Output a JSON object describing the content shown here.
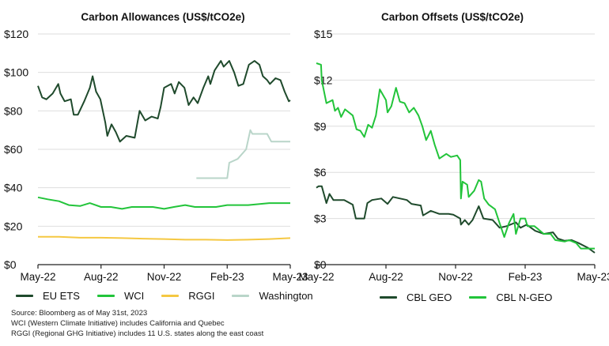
{
  "chart_data": [
    {
      "type": "line",
      "title": "Carbon Allowances (US$/tCO2e)",
      "xlabel": "",
      "ylabel": "",
      "x_ticks": [
        "May-22",
        "Aug-22",
        "Nov-22",
        "Feb-23",
        "May-23"
      ],
      "y_ticks": [
        "$0",
        "$20",
        "$40",
        "$60",
        "$80",
        "$100",
        "$120"
      ],
      "ylim": [
        0,
        120
      ],
      "xlim": [
        "2022-05-01",
        "2023-05-01"
      ],
      "grid": "horizontal",
      "legend": "bottom",
      "series": [
        {
          "name": "EU ETS",
          "color": "#1f4a2c",
          "points": [
            [
              "2022-05-01",
              93
            ],
            [
              "2022-05-07",
              87
            ],
            [
              "2022-05-13",
              86
            ],
            [
              "2022-05-22",
              89
            ],
            [
              "2022-05-30",
              94
            ],
            [
              "2022-06-03",
              89
            ],
            [
              "2022-06-09",
              85
            ],
            [
              "2022-06-18",
              86
            ],
            [
              "2022-06-22",
              78
            ],
            [
              "2022-06-28",
              78
            ],
            [
              "2022-07-07",
              85
            ],
            [
              "2022-07-15",
              92
            ],
            [
              "2022-07-19",
              98
            ],
            [
              "2022-07-24",
              90
            ],
            [
              "2022-07-30",
              86
            ],
            [
              "2022-08-07",
              74
            ],
            [
              "2022-08-10",
              67
            ],
            [
              "2022-08-16",
              73
            ],
            [
              "2022-08-22",
              69
            ],
            [
              "2022-08-28",
              64
            ],
            [
              "2022-09-07",
              67
            ],
            [
              "2022-09-19",
              66
            ],
            [
              "2022-09-26",
              80
            ],
            [
              "2022-10-04",
              75
            ],
            [
              "2022-10-13",
              77
            ],
            [
              "2022-10-22",
              76
            ],
            [
              "2022-10-26",
              82
            ],
            [
              "2022-11-01",
              92
            ],
            [
              "2022-11-11",
              94
            ],
            [
              "2022-11-16",
              89
            ],
            [
              "2022-11-22",
              95
            ],
            [
              "2022-11-30",
              92
            ],
            [
              "2022-12-06",
              83
            ],
            [
              "2022-12-13",
              87
            ],
            [
              "2022-12-19",
              84
            ],
            [
              "2022-12-27",
              92
            ],
            [
              "2023-01-04",
              98
            ],
            [
              "2023-01-07",
              94
            ],
            [
              "2023-01-13",
              101
            ],
            [
              "2023-01-22",
              106
            ],
            [
              "2023-01-26",
              103
            ],
            [
              "2023-02-04",
              106
            ],
            [
              "2023-02-11",
              100
            ],
            [
              "2023-02-17",
              93
            ],
            [
              "2023-02-24",
              94
            ],
            [
              "2023-03-02",
              104
            ],
            [
              "2023-03-10",
              106
            ],
            [
              "2023-03-17",
              104
            ],
            [
              "2023-03-22",
              98
            ],
            [
              "2023-03-28",
              96
            ],
            [
              "2023-04-02",
              94
            ],
            [
              "2023-04-10",
              97
            ],
            [
              "2023-04-17",
              96
            ],
            [
              "2023-04-23",
              90
            ],
            [
              "2023-04-29",
              85
            ],
            [
              "2023-05-01",
              85.5
            ]
          ]
        },
        {
          "name": "WCI",
          "color": "#22c43a",
          "points": [
            [
              "2022-05-01",
              35
            ],
            [
              "2022-05-15",
              34
            ],
            [
              "2022-06-01",
              33
            ],
            [
              "2022-06-15",
              31
            ],
            [
              "2022-07-01",
              30.5
            ],
            [
              "2022-07-15",
              32
            ],
            [
              "2022-08-01",
              30
            ],
            [
              "2022-08-15",
              30
            ],
            [
              "2022-09-01",
              29
            ],
            [
              "2022-09-15",
              30
            ],
            [
              "2022-10-01",
              30
            ],
            [
              "2022-10-15",
              30
            ],
            [
              "2022-11-01",
              29
            ],
            [
              "2022-11-15",
              30
            ],
            [
              "2022-12-01",
              31
            ],
            [
              "2022-12-15",
              30
            ],
            [
              "2023-01-01",
              30
            ],
            [
              "2023-01-15",
              30
            ],
            [
              "2023-02-01",
              31
            ],
            [
              "2023-03-01",
              31
            ],
            [
              "2023-04-01",
              32
            ],
            [
              "2023-04-15",
              32
            ],
            [
              "2023-05-01",
              32
            ]
          ]
        },
        {
          "name": "RGGI",
          "color": "#f5c842",
          "points": [
            [
              "2022-05-01",
              14.5
            ],
            [
              "2022-06-01",
              14.5
            ],
            [
              "2022-07-01",
              14
            ],
            [
              "2022-08-01",
              14
            ],
            [
              "2022-09-01",
              13.8
            ],
            [
              "2022-10-01",
              13.5
            ],
            [
              "2022-11-01",
              13.3
            ],
            [
              "2022-12-01",
              13
            ],
            [
              "2023-01-01",
              13
            ],
            [
              "2023-02-01",
              12.8
            ],
            [
              "2023-03-01",
              13
            ],
            [
              "2023-04-01",
              13.3
            ],
            [
              "2023-05-01",
              13.8
            ]
          ]
        },
        {
          "name": "Washington",
          "color": "#b9d5c9",
          "points": [
            [
              "2022-12-17",
              45
            ],
            [
              "2023-02-01",
              45
            ],
            [
              "2023-02-04",
              53
            ],
            [
              "2023-02-16",
              55
            ],
            [
              "2023-02-28",
              60
            ],
            [
              "2023-03-04",
              70
            ],
            [
              "2023-03-07",
              68
            ],
            [
              "2023-03-28",
              68
            ],
            [
              "2023-04-04",
              64
            ],
            [
              "2023-04-16",
              64
            ],
            [
              "2023-05-01",
              64
            ]
          ]
        }
      ]
    },
    {
      "type": "line",
      "title": "Carbon Offsets (US$/tCO2e)",
      "xlabel": "",
      "ylabel": "",
      "x_ticks": [
        "May-22",
        "Aug-22",
        "Nov-22",
        "Feb-23",
        "May-23"
      ],
      "y_ticks": [
        "$0",
        "$3",
        "$6",
        "$9",
        "$12",
        "$15"
      ],
      "ylim": [
        0,
        15
      ],
      "xlim": [
        "2022-05-01",
        "2023-05-01"
      ],
      "grid": "horizontal",
      "legend": "bottom",
      "series": [
        {
          "name": "CBL GEO",
          "color": "#1f4a2c",
          "points": [
            [
              "2022-05-01",
              5.0
            ],
            [
              "2022-05-04",
              5.1
            ],
            [
              "2022-05-08",
              5.1
            ],
            [
              "2022-05-14",
              4.0
            ],
            [
              "2022-05-18",
              4.6
            ],
            [
              "2022-05-23",
              4.2
            ],
            [
              "2022-06-07",
              4.2
            ],
            [
              "2022-06-18",
              3.9
            ],
            [
              "2022-06-22",
              3.0
            ],
            [
              "2022-07-03",
              3.0
            ],
            [
              "2022-07-07",
              4.0
            ],
            [
              "2022-07-13",
              4.2
            ],
            [
              "2022-07-25",
              4.3
            ],
            [
              "2022-08-03",
              3.95
            ],
            [
              "2022-08-10",
              4.4
            ],
            [
              "2022-08-28",
              4.2
            ],
            [
              "2022-09-04",
              3.95
            ],
            [
              "2022-09-16",
              3.85
            ],
            [
              "2022-09-19",
              3.2
            ],
            [
              "2022-09-29",
              3.5
            ],
            [
              "2022-10-10",
              3.3
            ],
            [
              "2022-10-22",
              3.3
            ],
            [
              "2022-10-28",
              3.25
            ],
            [
              "2022-11-07",
              3.0
            ],
            [
              "2022-11-08",
              2.6
            ],
            [
              "2022-11-13",
              2.9
            ],
            [
              "2022-11-18",
              2.6
            ],
            [
              "2022-11-23",
              2.9
            ],
            [
              "2022-12-01",
              3.8
            ],
            [
              "2022-12-07",
              3.0
            ],
            [
              "2022-12-19",
              2.9
            ],
            [
              "2022-12-28",
              2.4
            ],
            [
              "2023-01-07",
              2.5
            ],
            [
              "2023-01-19",
              2.75
            ],
            [
              "2023-01-25",
              2.4
            ],
            [
              "2023-02-03",
              2.6
            ],
            [
              "2023-02-14",
              2.2
            ],
            [
              "2023-02-25",
              2.0
            ],
            [
              "2023-03-07",
              2.1
            ],
            [
              "2023-03-13",
              1.7
            ],
            [
              "2023-03-22",
              1.55
            ],
            [
              "2023-04-01",
              1.6
            ],
            [
              "2023-04-10",
              1.4
            ],
            [
              "2023-04-22",
              1.1
            ],
            [
              "2023-05-01",
              0.77
            ]
          ]
        },
        {
          "name": "CBL N-GEO",
          "color": "#22c43a",
          "points": [
            [
              "2022-05-01",
              13.1
            ],
            [
              "2022-05-07",
              13.0
            ],
            [
              "2022-05-08",
              12.0
            ],
            [
              "2022-05-14",
              10.5
            ],
            [
              "2022-05-22",
              10.7
            ],
            [
              "2022-05-25",
              10.0
            ],
            [
              "2022-05-29",
              10.2
            ],
            [
              "2022-06-03",
              9.6
            ],
            [
              "2022-06-08",
              10.1
            ],
            [
              "2022-06-18",
              9.7
            ],
            [
              "2022-06-23",
              8.8
            ],
            [
              "2022-06-28",
              8.7
            ],
            [
              "2022-07-03",
              8.3
            ],
            [
              "2022-07-08",
              9.1
            ],
            [
              "2022-07-13",
              8.9
            ],
            [
              "2022-07-18",
              9.7
            ],
            [
              "2022-07-23",
              11.4
            ],
            [
              "2022-08-01",
              10.7
            ],
            [
              "2022-08-03",
              9.9
            ],
            [
              "2022-08-08",
              10.3
            ],
            [
              "2022-08-14",
              11.5
            ],
            [
              "2022-08-19",
              10.6
            ],
            [
              "2022-08-25",
              10.5
            ],
            [
              "2022-09-01",
              9.9
            ],
            [
              "2022-09-07",
              10.2
            ],
            [
              "2022-09-13",
              9.7
            ],
            [
              "2022-09-18",
              9.0
            ],
            [
              "2022-09-23",
              8.1
            ],
            [
              "2022-09-29",
              8.7
            ],
            [
              "2022-10-04",
              7.8
            ],
            [
              "2022-10-10",
              6.9
            ],
            [
              "2022-10-19",
              7.2
            ],
            [
              "2022-10-25",
              7.0
            ],
            [
              "2022-11-03",
              7.1
            ],
            [
              "2022-11-07",
              6.8
            ],
            [
              "2022-11-08",
              4.3
            ],
            [
              "2022-11-10",
              5.4
            ],
            [
              "2022-11-16",
              5.2
            ],
            [
              "2022-11-18",
              4.4
            ],
            [
              "2022-11-25",
              4.8
            ],
            [
              "2022-12-01",
              5.5
            ],
            [
              "2022-12-04",
              5.4
            ],
            [
              "2022-12-08",
              4.3
            ],
            [
              "2022-12-14",
              3.9
            ],
            [
              "2022-12-22",
              3.6
            ],
            [
              "2022-12-28",
              2.7
            ],
            [
              "2023-01-04",
              1.8
            ],
            [
              "2023-01-10",
              2.7
            ],
            [
              "2023-01-16",
              3.3
            ],
            [
              "2023-01-19",
              2.0
            ],
            [
              "2023-01-25",
              3.0
            ],
            [
              "2023-02-01",
              3.0
            ],
            [
              "2023-02-04",
              2.5
            ],
            [
              "2023-02-13",
              2.5
            ],
            [
              "2023-02-18",
              2.3
            ],
            [
              "2023-02-25",
              2.0
            ],
            [
              "2023-03-04",
              2.0
            ],
            [
              "2023-03-10",
              1.6
            ],
            [
              "2023-03-22",
              1.5
            ],
            [
              "2023-03-28",
              1.6
            ],
            [
              "2023-04-07",
              1.4
            ],
            [
              "2023-04-13",
              1.05
            ],
            [
              "2023-04-22",
              1.05
            ],
            [
              "2023-05-01",
              1.05
            ]
          ]
        }
      ]
    }
  ],
  "notes": [
    "Source: Bloomberg as of May 31st, 2023",
    "WCI (Western Climate Initiative) includes California and Quebec",
    "RGGI (Regional GHG Initiative) includes 11 U.S. states along the east coast"
  ]
}
